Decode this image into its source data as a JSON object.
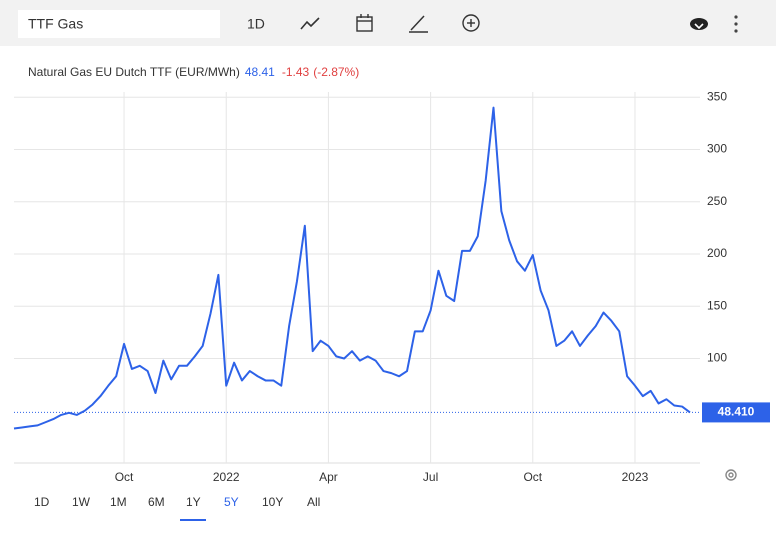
{
  "toolbar": {
    "search": "TTF Gas",
    "interval": "1D"
  },
  "chart_data": {
    "type": "line",
    "title": "Natural Gas EU Dutch TTF (EUR/MWh)",
    "last": "48.41",
    "change": "-1.43",
    "change_pct": "(-2.87%)",
    "price_tag": "48.410",
    "categories": [
      null,
      null,
      null,
      null,
      null,
      null,
      null,
      null,
      null,
      null,
      null,
      null,
      null,
      null,
      "Oct",
      null,
      null,
      null,
      null,
      null,
      null,
      null,
      null,
      null,
      null,
      null,
      null,
      "2022",
      null,
      null,
      null,
      null,
      null,
      null,
      null,
      null,
      null,
      null,
      null,
      null,
      "Apr",
      null,
      null,
      null,
      null,
      null,
      null,
      null,
      null,
      null,
      null,
      null,
      null,
      "Jul",
      null,
      null,
      null,
      null,
      null,
      null,
      null,
      null,
      null,
      null,
      null,
      null,
      "Oct",
      null,
      null,
      null,
      null,
      null,
      null,
      null,
      null,
      null,
      null,
      null,
      null,
      "2023",
      null,
      null,
      null,
      null,
      null,
      null,
      null
    ],
    "series": [
      {
        "name": "Natural Gas EU Dutch TTF",
        "color": "#2d62e8",
        "values": [
          33,
          34,
          35,
          36,
          39,
          42,
          46,
          48,
          46,
          50,
          56,
          64,
          74,
          83,
          114,
          90,
          93,
          88,
          67,
          98,
          80,
          93,
          93,
          102,
          112,
          143,
          180,
          74,
          96,
          79,
          88,
          83,
          79,
          79,
          74,
          131,
          174,
          227,
          107,
          117,
          112,
          102,
          100,
          107,
          98,
          102,
          98,
          88,
          86,
          83,
          88,
          126,
          126,
          146,
          184,
          160,
          155,
          203,
          203,
          217,
          270,
          340,
          241,
          213,
          193,
          184,
          199,
          165,
          146,
          112,
          117,
          126,
          112,
          122,
          131,
          144,
          136,
          126,
          83,
          74,
          64,
          69,
          57,
          61,
          55,
          54,
          48.41
        ]
      }
    ],
    "ylim": [
      0,
      355
    ],
    "yticks": [
      100,
      150,
      200,
      250,
      300,
      350
    ],
    "grid": true,
    "ranges": [
      "1D",
      "1W",
      "1M",
      "6M",
      "1Y",
      "5Y",
      "10Y",
      "All"
    ],
    "active_range": "5Y"
  }
}
